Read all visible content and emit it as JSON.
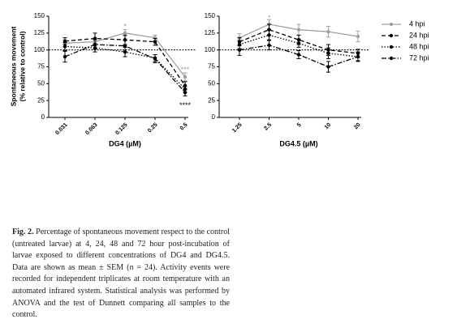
{
  "chart_data": [
    {
      "type": "line",
      "xlabel": "DG4 (µM)",
      "ylabel": [
        "Spontaneous movement",
        "(% relative to control)"
      ],
      "categories": [
        "0.031",
        "0.063",
        "0.125",
        "0.25",
        "0.5"
      ],
      "ylim": [
        0,
        150
      ],
      "yticks": [
        0,
        25,
        50,
        75,
        100,
        125,
        150
      ],
      "reference_line": 100,
      "series": [
        {
          "color": "#a0a0a0",
          "dash": "solid",
          "values": [
            110,
            112,
            125,
            118,
            60
          ],
          "errors": [
            5,
            6,
            5,
            4,
            6
          ]
        },
        {
          "color": "#000000",
          "dash": "dashed",
          "values": [
            113,
            117,
            115,
            112,
            47
          ],
          "errors": [
            5,
            8,
            7,
            5,
            6
          ]
        },
        {
          "color": "#000000",
          "dash": "dotted",
          "values": [
            105,
            103,
            97,
            88,
            42
          ],
          "errors": [
            6,
            6,
            7,
            5,
            5
          ]
        },
        {
          "color": "#000000",
          "dash": "dashdot",
          "values": [
            90,
            108,
            106,
            87,
            37
          ],
          "errors": [
            8,
            7,
            8,
            6,
            5
          ]
        }
      ],
      "annotations": [
        {
          "text": "*",
          "category": "0.125",
          "y": 134,
          "color": "#a0a0a0"
        },
        {
          "text": "***",
          "category": "0.5",
          "y": 70,
          "color": "#a0a0a0"
        },
        {
          "text": "****",
          "category": "0.5",
          "y": 17,
          "color": "#000000"
        }
      ]
    },
    {
      "type": "line",
      "xlabel": "DG4.5 (µM)",
      "categories": [
        "1.25",
        "2.5",
        "5",
        "10",
        "20"
      ],
      "ylim": [
        0,
        150
      ],
      "yticks": [
        0,
        25,
        50,
        75,
        100,
        125,
        150
      ],
      "reference_line": 100,
      "legend": "right",
      "series": [
        {
          "name": "4 hpi",
          "color": "#a0a0a0",
          "dash": "solid",
          "values": [
            118,
            138,
            130,
            127,
            120
          ],
          "errors": [
            6,
            7,
            8,
            8,
            8
          ]
        },
        {
          "name": "24 hpi",
          "color": "#000000",
          "dash": "dashed",
          "values": [
            112,
            130,
            115,
            100,
            95
          ],
          "errors": [
            6,
            8,
            7,
            8,
            6
          ]
        },
        {
          "name": "48 hpi",
          "color": "#000000",
          "dash": "dotted",
          "values": [
            108,
            122,
            110,
            95,
            90
          ],
          "errors": [
            6,
            7,
            6,
            8,
            6
          ]
        },
        {
          "name": "72 hpi",
          "color": "#000000",
          "dash": "dashdot",
          "values": [
            100,
            107,
            93,
            75,
            90
          ],
          "errors": [
            8,
            7,
            6,
            8,
            7
          ]
        }
      ],
      "annotations": [
        {
          "text": "*",
          "category": "2.5",
          "y": 147,
          "color": "#a0a0a0"
        }
      ]
    }
  ],
  "caption": {
    "label": "Fig. 2.",
    "parts": [
      {
        "text": " Percentage of spontaneous movement respect to the control (untreated larvae) at 4, 24, 48 and 72 hour post-incubation of larvae exposed to different concentrations of DG4 and DG4.5. Data are shown as mean ± SEM ("
      },
      {
        "text": "n",
        "italic": true
      },
      {
        "text": " = 24). Activity events were recorded for independent triplicates at room temperature with an automated infrared system. Statistical analysis was performed by ANOVA and the test of Dunnett comparing all samples to the control."
      }
    ]
  }
}
